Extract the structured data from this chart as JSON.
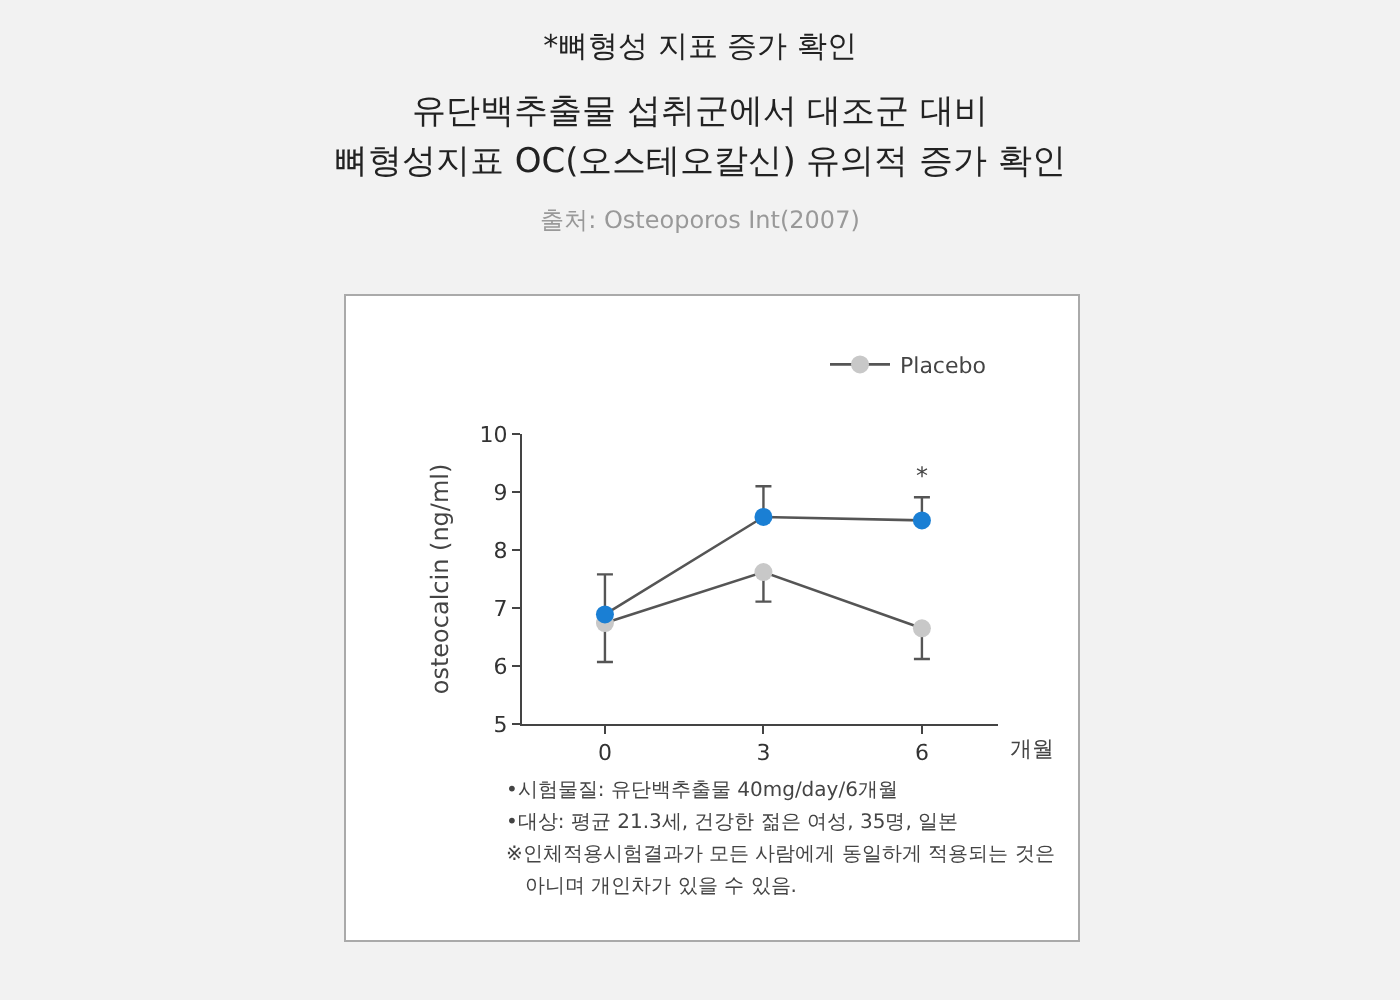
{
  "chart_data": {
    "type": "line",
    "title": "*뼈형성 지표 증가 확인",
    "subtitle": "유단백추출물 섭취군에서 대조군 대비\n뼈형성지표 OC(오스테오칼신) 유의적 증가 확인",
    "x": [
      0,
      3,
      6
    ],
    "xlim": [
      -1.57,
      7.44
    ],
    "xticks": [
      0,
      3,
      6
    ],
    "xlabel": "개월",
    "ylabel": "osteocalcin (ng/ml)",
    "ylim": [
      5,
      10
    ],
    "yticks": [
      5,
      6,
      7,
      8,
      9,
      10
    ],
    "series": [
      {
        "name": "Placebo",
        "color": "#c8c8c8",
        "values": [
          6.74,
          7.62,
          6.65
        ],
        "errors": [
          [
            6.07,
            6.74
          ],
          [
            7.11,
            7.62
          ],
          [
            6.12,
            6.65
          ]
        ]
      },
      {
        "color": "#1a7fd4",
        "values": [
          6.89,
          8.57,
          8.51
        ],
        "errors": [
          [
            6.89,
            7.58
          ],
          [
            8.57,
            9.1
          ],
          [
            8.51,
            8.91
          ]
        ]
      }
    ],
    "annotations": [
      "출처: Osteoporos Int(2007)",
      {
        "text": "*",
        "x": 6,
        "y": 8.91
      },
      "•시험물질: 유단백추출물 40mg/day/6개월",
      "•대상: 평균 21.3세, 건강한 젊은 여성, 35명, 일본",
      "※인체적용시험결과가 모든 사람에게 동일하게 적용되는 것은\n   아니며 개인차가 있을 수 있음."
    ],
    "marker": "circle",
    "line_style": "solid",
    "grid": false,
    "legend": "top right"
  }
}
